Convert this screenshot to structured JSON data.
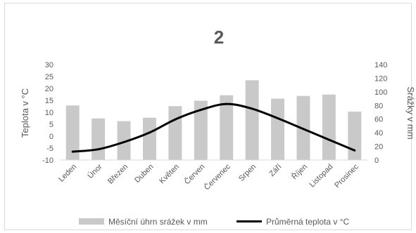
{
  "chart_data": {
    "type": "bar",
    "title": "2",
    "categories": [
      "Leden",
      "Únor",
      "Březen",
      "Duben",
      "Květen",
      "Červen",
      "Červenec",
      "Srpen",
      "Září",
      "Říjen",
      "Listopad",
      "Prosinec"
    ],
    "series": [
      {
        "name": "Měsíční úhrn srážek v mm",
        "type": "bar",
        "axis": "right",
        "color": "#c9c9c9",
        "values": [
          80,
          61,
          57,
          62,
          79,
          87,
          95,
          117,
          90,
          94,
          96,
          71
        ]
      },
      {
        "name": "Průměrná teplota v °C",
        "type": "line",
        "axis": "left",
        "color": "#000000",
        "values": [
          -6.5,
          -5.5,
          -2.5,
          1.5,
          7,
          11,
          13.5,
          11.5,
          7.5,
          3,
          -1.5,
          -6
        ]
      }
    ],
    "y_left": {
      "label": "Teplota v °C",
      "min": -10,
      "max": 30,
      "step": 5,
      "ticks": [
        "30",
        "25",
        "20",
        "15",
        "10",
        "5",
        "0",
        "-5",
        "-10"
      ]
    },
    "y_right": {
      "label": "Srážky v mm",
      "min": 0,
      "max": 140,
      "step": 20,
      "ticks": [
        "140",
        "120",
        "100",
        "80",
        "60",
        "40",
        "20",
        "0"
      ]
    },
    "legend_position": "bottom",
    "grid": false
  }
}
